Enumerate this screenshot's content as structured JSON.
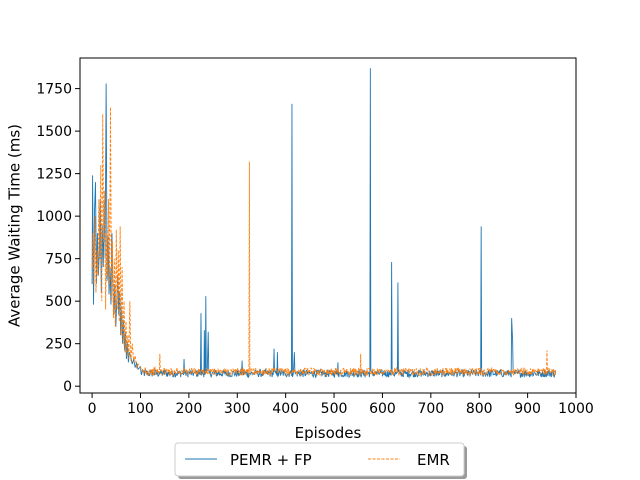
{
  "chart_data": {
    "type": "line",
    "title": "",
    "xlabel": "Episodes",
    "ylabel": "Average Waiting Time (ms)",
    "xlim": [
      -25,
      1000
    ],
    "ylim": [
      -40,
      1930
    ],
    "xticks": [
      0,
      100,
      200,
      300,
      400,
      500,
      600,
      700,
      800,
      900,
      1000
    ],
    "yticks": [
      0,
      250,
      500,
      750,
      1000,
      1250,
      1500,
      1750
    ],
    "grid": false,
    "legend": {
      "placement": "bottom-center-outside",
      "columns": 2
    },
    "series": [
      {
        "name": "PEMR + FP",
        "color": "#1f77b4",
        "style": "solid",
        "baseline": 75,
        "points": [
          [
            0,
            600
          ],
          [
            1,
            1240
          ],
          [
            3,
            480
          ],
          [
            5,
            1030
          ],
          [
            7,
            1200
          ],
          [
            9,
            600
          ],
          [
            11,
            900
          ],
          [
            13,
            650
          ],
          [
            15,
            800
          ],
          [
            17,
            1100
          ],
          [
            19,
            550
          ],
          [
            21,
            950
          ],
          [
            23,
            700
          ],
          [
            25,
            1080
          ],
          [
            27,
            750
          ],
          [
            29,
            1780
          ],
          [
            31,
            620
          ],
          [
            33,
            880
          ],
          [
            35,
            540
          ],
          [
            37,
            700
          ],
          [
            39,
            480
          ],
          [
            41,
            900
          ],
          [
            43,
            560
          ],
          [
            45,
            420
          ],
          [
            47,
            600
          ],
          [
            49,
            350
          ],
          [
            51,
            500
          ],
          [
            53,
            650
          ],
          [
            55,
            420
          ],
          [
            57,
            560
          ],
          [
            59,
            300
          ],
          [
            61,
            450
          ],
          [
            63,
            250
          ],
          [
            65,
            380
          ],
          [
            67,
            210
          ],
          [
            69,
            320
          ],
          [
            71,
            160
          ],
          [
            73,
            260
          ],
          [
            75,
            140
          ],
          [
            77,
            200
          ],
          [
            80,
            170
          ],
          [
            83,
            130
          ],
          [
            86,
            160
          ],
          [
            89,
            110
          ],
          [
            92,
            135
          ],
          [
            95,
            100
          ],
          [
            100,
            115
          ],
          [
            105,
            95
          ],
          [
            110,
            105
          ],
          [
            120,
            90
          ],
          [
            130,
            100
          ],
          [
            140,
            85
          ],
          [
            150,
            95
          ],
          [
            160,
            80
          ],
          [
            170,
            90
          ],
          [
            185,
            75
          ],
          [
            190,
            160
          ],
          [
            193,
            80
          ],
          [
            200,
            85
          ],
          [
            210,
            75
          ],
          [
            220,
            90
          ],
          [
            225,
            430
          ],
          [
            228,
            80
          ],
          [
            232,
            330
          ],
          [
            235,
            530
          ],
          [
            238,
            90
          ],
          [
            240,
            320
          ],
          [
            243,
            80
          ],
          [
            250,
            85
          ],
          [
            260,
            75
          ],
          [
            275,
            80
          ],
          [
            290,
            85
          ],
          [
            305,
            75
          ],
          [
            310,
            150
          ],
          [
            314,
            80
          ],
          [
            325,
            75
          ],
          [
            340,
            85
          ],
          [
            355,
            80
          ],
          [
            370,
            75
          ],
          [
            376,
            220
          ],
          [
            379,
            80
          ],
          [
            383,
            200
          ],
          [
            386,
            80
          ],
          [
            400,
            75
          ],
          [
            410,
            80
          ],
          [
            413,
            1660
          ],
          [
            416,
            80
          ],
          [
            418,
            200
          ],
          [
            421,
            80
          ],
          [
            435,
            75
          ],
          [
            450,
            80
          ],
          [
            470,
            75
          ],
          [
            490,
            80
          ],
          [
            505,
            75
          ],
          [
            508,
            140
          ],
          [
            511,
            80
          ],
          [
            525,
            75
          ],
          [
            545,
            80
          ],
          [
            560,
            75
          ],
          [
            572,
            80
          ],
          [
            575,
            1870
          ],
          [
            578,
            80
          ],
          [
            590,
            75
          ],
          [
            605,
            80
          ],
          [
            615,
            75
          ],
          [
            619,
            730
          ],
          [
            622,
            80
          ],
          [
            628,
            75
          ],
          [
            632,
            610
          ],
          [
            635,
            80
          ],
          [
            650,
            75
          ],
          [
            670,
            80
          ],
          [
            690,
            75
          ],
          [
            710,
            80
          ],
          [
            730,
            75
          ],
          [
            750,
            80
          ],
          [
            770,
            75
          ],
          [
            790,
            80
          ],
          [
            800,
            75
          ],
          [
            804,
            940
          ],
          [
            807,
            80
          ],
          [
            820,
            75
          ],
          [
            840,
            80
          ],
          [
            855,
            75
          ],
          [
            864,
            80
          ],
          [
            867,
            400
          ],
          [
            869,
            270
          ],
          [
            872,
            80
          ],
          [
            880,
            75
          ],
          [
            890,
            80
          ],
          [
            900,
            75
          ],
          [
            915,
            80
          ],
          [
            930,
            75
          ],
          [
            945,
            80
          ],
          [
            958,
            75
          ]
        ]
      },
      {
        "name": "EMR",
        "color": "#ff7f0e",
        "style": "dashed",
        "baseline": 85,
        "points": [
          [
            0,
            700
          ],
          [
            2,
            900
          ],
          [
            4,
            600
          ],
          [
            6,
            1000
          ],
          [
            8,
            550
          ],
          [
            10,
            800
          ],
          [
            12,
            650
          ],
          [
            14,
            1100
          ],
          [
            16,
            750
          ],
          [
            18,
            1300
          ],
          [
            20,
            500
          ],
          [
            22,
            1600
          ],
          [
            24,
            850
          ],
          [
            26,
            1150
          ],
          [
            28,
            450
          ],
          [
            30,
            900
          ],
          [
            32,
            650
          ],
          [
            34,
            1100
          ],
          [
            36,
            600
          ],
          [
            38,
            1640
          ],
          [
            40,
            500
          ],
          [
            42,
            850
          ],
          [
            44,
            400
          ],
          [
            46,
            750
          ],
          [
            48,
            350
          ],
          [
            50,
            920
          ],
          [
            52,
            450
          ],
          [
            54,
            800
          ],
          [
            56,
            380
          ],
          [
            58,
            940
          ],
          [
            60,
            300
          ],
          [
            62,
            700
          ],
          [
            64,
            250
          ],
          [
            66,
            500
          ],
          [
            68,
            200
          ],
          [
            70,
            380
          ],
          [
            72,
            180
          ],
          [
            74,
            300
          ],
          [
            76,
            160
          ],
          [
            78,
            500
          ],
          [
            80,
            150
          ],
          [
            83,
            250
          ],
          [
            86,
            140
          ],
          [
            89,
            180
          ],
          [
            92,
            110
          ],
          [
            95,
            130
          ],
          [
            100,
            110
          ],
          [
            105,
            95
          ],
          [
            110,
            110
          ],
          [
            120,
            100
          ],
          [
            130,
            110
          ],
          [
            140,
            190
          ],
          [
            143,
            95
          ],
          [
            150,
            105
          ],
          [
            160,
            95
          ],
          [
            175,
            110
          ],
          [
            190,
            100
          ],
          [
            205,
            95
          ],
          [
            220,
            105
          ],
          [
            240,
            95
          ],
          [
            260,
            100
          ],
          [
            280,
            95
          ],
          [
            300,
            105
          ],
          [
            315,
            100
          ],
          [
            322,
            95
          ],
          [
            325,
            1320
          ],
          [
            328,
            100
          ],
          [
            340,
            95
          ],
          [
            360,
            105
          ],
          [
            380,
            95
          ],
          [
            400,
            100
          ],
          [
            420,
            95
          ],
          [
            440,
            105
          ],
          [
            460,
            95
          ],
          [
            480,
            100
          ],
          [
            500,
            95
          ],
          [
            520,
            105
          ],
          [
            540,
            95
          ],
          [
            552,
            100
          ],
          [
            555,
            190
          ],
          [
            558,
            100
          ],
          [
            570,
            95
          ],
          [
            590,
            105
          ],
          [
            610,
            95
          ],
          [
            630,
            100
          ],
          [
            650,
            95
          ],
          [
            670,
            105
          ],
          [
            690,
            95
          ],
          [
            710,
            100
          ],
          [
            730,
            95
          ],
          [
            750,
            105
          ],
          [
            770,
            95
          ],
          [
            790,
            100
          ],
          [
            810,
            95
          ],
          [
            830,
            105
          ],
          [
            850,
            95
          ],
          [
            870,
            100
          ],
          [
            890,
            95
          ],
          [
            910,
            100
          ],
          [
            925,
            95
          ],
          [
            935,
            100
          ],
          [
            940,
            210
          ],
          [
            943,
            95
          ],
          [
            950,
            100
          ],
          [
            958,
            95
          ]
        ]
      }
    ]
  }
}
